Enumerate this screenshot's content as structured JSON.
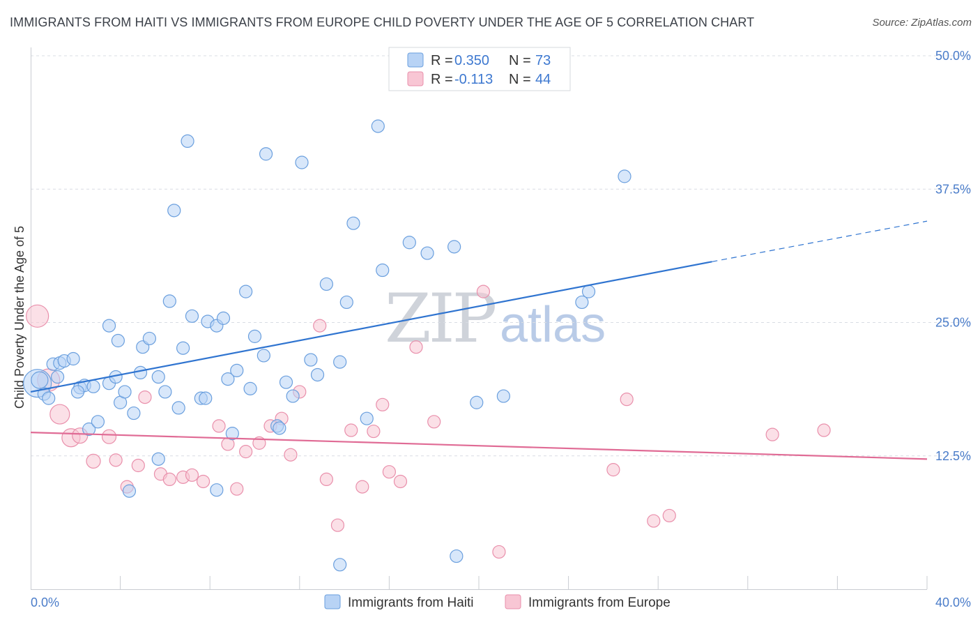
{
  "title": "IMMIGRANTS FROM HAITI VS IMMIGRANTS FROM EUROPE CHILD POVERTY UNDER THE AGE OF 5 CORRELATION CHART",
  "source": "Source: ZipAtlas.com",
  "watermark": {
    "zip": "ZIP",
    "atlas": "atlas"
  },
  "colors": {
    "haiti_fill": "#b8d3f5",
    "haiti_stroke": "#6a9fde",
    "haiti_line": "#2f74d0",
    "europe_fill": "#f8c6d4",
    "europe_stroke": "#e98fab",
    "europe_line": "#e06b95",
    "grid": "#d8dce3",
    "axis_text": "#4a7cc9"
  },
  "legend": {
    "rows": [
      {
        "r_label": "R = ",
        "r_value": "0.350",
        "n_label": "N = ",
        "n_value": "73"
      },
      {
        "r_label": "R = ",
        "r_value": "-0.113",
        "n_label": "N = ",
        "n_value": "44"
      }
    ]
  },
  "bottom_legend": [
    "Immigrants from Haiti",
    "Immigrants from Europe"
  ],
  "chart_data": {
    "type": "scatter",
    "title": "IMMIGRANTS FROM HAITI VS IMMIGRANTS FROM EUROPE CHILD POVERTY UNDER THE AGE OF 5 CORRELATION CHART",
    "xlabel": "",
    "ylabel": "Child Poverty Under the Age of 5",
    "xlim": [
      0,
      40
    ],
    "ylim": [
      0,
      50
    ],
    "x_tick_labels": [
      "0.0%",
      "40.0%"
    ],
    "y_ticks": [
      12.5,
      25.0,
      37.5,
      50.0
    ],
    "y_tick_labels": [
      "12.5%",
      "25.0%",
      "37.5%",
      "50.0%"
    ],
    "grid": true,
    "legend_position": "top-center",
    "series": [
      {
        "name": "Immigrants from Haiti",
        "trend": {
          "x": [
            0,
            30.4
          ],
          "y": [
            18.5,
            30.7
          ],
          "dashed_to": [
            40,
            34.5
          ]
        },
        "points": [
          [
            0.3,
            19.3,
            20
          ],
          [
            0.4,
            19.6,
            12
          ],
          [
            0.6,
            18.3,
            9
          ],
          [
            0.8,
            17.9,
            9
          ],
          [
            1.0,
            21.1,
            9
          ],
          [
            1.3,
            21.2,
            9
          ],
          [
            1.5,
            21.4,
            9
          ],
          [
            1.9,
            21.6,
            9
          ],
          [
            2.2,
            18.9,
            9
          ],
          [
            2.4,
            19.1,
            9
          ],
          [
            2.8,
            19.0,
            9
          ],
          [
            2.6,
            15.0,
            9
          ],
          [
            3.0,
            15.7,
            9
          ],
          [
            3.5,
            24.7,
            9
          ],
          [
            3.5,
            19.3,
            9
          ],
          [
            3.8,
            19.9,
            9
          ],
          [
            4.0,
            17.5,
            9
          ],
          [
            4.2,
            18.5,
            9
          ],
          [
            4.6,
            16.5,
            9
          ],
          [
            4.9,
            20.3,
            9
          ],
          [
            5.0,
            22.7,
            9
          ],
          [
            5.3,
            23.5,
            9
          ],
          [
            5.7,
            19.9,
            9
          ],
          [
            6.0,
            18.5,
            9
          ],
          [
            6.2,
            27.0,
            9
          ],
          [
            6.4,
            35.5,
            9
          ],
          [
            6.6,
            17.0,
            9
          ],
          [
            6.8,
            22.6,
            9
          ],
          [
            7.0,
            42.0,
            9
          ],
          [
            7.2,
            25.6,
            9
          ],
          [
            7.6,
            17.9,
            9
          ],
          [
            7.8,
            17.9,
            9
          ],
          [
            7.9,
            25.1,
            9
          ],
          [
            8.3,
            24.7,
            9
          ],
          [
            8.6,
            25.4,
            9
          ],
          [
            8.8,
            19.7,
            9
          ],
          [
            9.2,
            20.5,
            9
          ],
          [
            9.6,
            27.9,
            9
          ],
          [
            9.8,
            18.8,
            9
          ],
          [
            10.0,
            23.7,
            9
          ],
          [
            10.4,
            21.9,
            9
          ],
          [
            10.5,
            40.8,
            9
          ],
          [
            11.0,
            15.3,
            9
          ],
          [
            11.4,
            19.4,
            9
          ],
          [
            11.7,
            18.1,
            9
          ],
          [
            12.1,
            40.0,
            9
          ],
          [
            12.5,
            21.5,
            9
          ],
          [
            12.8,
            20.1,
            9
          ],
          [
            13.2,
            28.6,
            9
          ],
          [
            13.8,
            21.3,
            9
          ],
          [
            14.1,
            26.9,
            9
          ],
          [
            14.4,
            34.3,
            9
          ],
          [
            15.0,
            16.0,
            9
          ],
          [
            15.5,
            43.4,
            9
          ],
          [
            15.7,
            29.9,
            9
          ],
          [
            16.9,
            32.5,
            9
          ],
          [
            17.7,
            31.5,
            9
          ],
          [
            18.9,
            32.1,
            9
          ],
          [
            19.9,
            17.5,
            9
          ],
          [
            21.1,
            18.1,
            9
          ],
          [
            24.6,
            26.9,
            9
          ],
          [
            24.9,
            27.9,
            9
          ],
          [
            26.5,
            38.7,
            9
          ],
          [
            5.7,
            12.2,
            9
          ],
          [
            8.3,
            9.3,
            9
          ],
          [
            4.4,
            9.2,
            9
          ],
          [
            13.8,
            2.3,
            9
          ],
          [
            19.0,
            3.1,
            9
          ],
          [
            9.0,
            14.6,
            9
          ],
          [
            11.1,
            15.1,
            9
          ],
          [
            3.9,
            23.3,
            9
          ],
          [
            2.1,
            18.5,
            9
          ],
          [
            1.2,
            19.9,
            9
          ]
        ]
      },
      {
        "name": "Immigrants from Europe",
        "trend": {
          "x": [
            0,
            40
          ],
          "y": [
            14.7,
            12.2
          ]
        },
        "points": [
          [
            0.3,
            25.6,
            16
          ],
          [
            0.8,
            19.6,
            16
          ],
          [
            1.3,
            16.4,
            14
          ],
          [
            1.8,
            14.2,
            13
          ],
          [
            2.2,
            14.4,
            11
          ],
          [
            2.8,
            12.0,
            10
          ],
          [
            3.5,
            14.3,
            10
          ],
          [
            3.8,
            12.1,
            9
          ],
          [
            4.3,
            9.6,
            9
          ],
          [
            4.8,
            11.6,
            9
          ],
          [
            5.1,
            18.0,
            9
          ],
          [
            5.8,
            10.8,
            9
          ],
          [
            6.2,
            10.3,
            9
          ],
          [
            6.8,
            10.5,
            9
          ],
          [
            7.2,
            10.7,
            9
          ],
          [
            7.7,
            10.1,
            9
          ],
          [
            8.4,
            15.3,
            9
          ],
          [
            8.8,
            13.6,
            9
          ],
          [
            9.2,
            9.4,
            9
          ],
          [
            9.6,
            12.9,
            9
          ],
          [
            10.2,
            13.7,
            9
          ],
          [
            10.7,
            15.3,
            9
          ],
          [
            11.2,
            16.0,
            9
          ],
          [
            11.6,
            12.6,
            9
          ],
          [
            12.0,
            18.5,
            9
          ],
          [
            12.9,
            24.7,
            9
          ],
          [
            13.2,
            10.3,
            9
          ],
          [
            13.7,
            6.0,
            9
          ],
          [
            14.3,
            14.9,
            9
          ],
          [
            14.8,
            9.6,
            9
          ],
          [
            15.3,
            14.8,
            9
          ],
          [
            15.7,
            17.3,
            9
          ],
          [
            16.0,
            11.0,
            9
          ],
          [
            16.5,
            10.1,
            9
          ],
          [
            17.2,
            22.7,
            9
          ],
          [
            18.0,
            15.7,
            9
          ],
          [
            20.2,
            27.9,
            9
          ],
          [
            20.9,
            3.5,
            9
          ],
          [
            26.6,
            17.8,
            9
          ],
          [
            26.0,
            11.2,
            9
          ],
          [
            27.8,
            6.4,
            9
          ],
          [
            28.5,
            6.9,
            9
          ],
          [
            33.1,
            14.5,
            9
          ],
          [
            35.4,
            14.9,
            9
          ]
        ]
      }
    ]
  }
}
